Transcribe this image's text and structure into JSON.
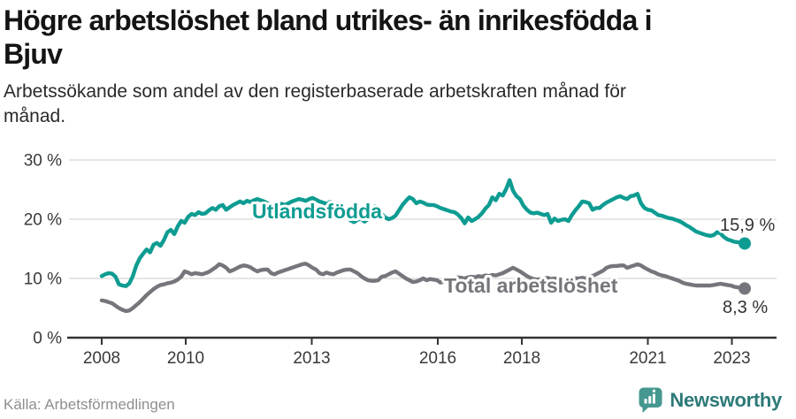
{
  "header": {
    "title_line1": "Högre arbetslöshet bland utrikes- än inrikesfödda i",
    "title_line2": "Bjuv",
    "subtitle_line1": "Arbetssökande som andel av den registerbaserade arbetskraften månad för",
    "subtitle_line2": "månad."
  },
  "footer": {
    "source": "Källa: Arbetsförmedlingen",
    "logo_text": "Newsworthy"
  },
  "colors": {
    "accent_teal": "#0e9c92",
    "series_gray": "#76757b",
    "grid": "#dddddd",
    "axis": "#333333",
    "logo_icon": "#45988f",
    "logo_text": "#2c7a78"
  },
  "chart_data": {
    "type": "line",
    "title": "Högre arbetslöshet bland utrikes- än inrikesfödda i Bjuv",
    "subtitle": "Arbetssökande som andel av den registerbaserade arbetskraften månad för månad.",
    "x_start": "2008-01",
    "x_end": "2023-07",
    "frequency": "monthly",
    "x_tick_labels": [
      "2008",
      "2010",
      "2013",
      "2016",
      "2018",
      "2021",
      "2023"
    ],
    "x_tick_years": [
      2008,
      2010,
      2013,
      2016,
      2018,
      2021,
      2023
    ],
    "y_ticks": [
      0,
      10,
      20,
      30
    ],
    "y_tick_labels": [
      "0 %",
      "10 %",
      "20 %",
      "30 %"
    ],
    "ylim": [
      0,
      30
    ],
    "grid": "horizontal",
    "legend_position": "inline-labels",
    "series": [
      {
        "name": "Utlandsfödda",
        "color": "#0e9c92",
        "end_label": "15,9 %",
        "end_value": 15.9,
        "values": [
          10.4,
          10.7,
          10.9,
          10.8,
          10.3,
          9.0,
          8.8,
          8.7,
          9.2,
          10.4,
          12.2,
          13.4,
          14.2,
          14.9,
          14.4,
          15.7,
          16.0,
          15.5,
          16.5,
          17.8,
          18.2,
          17.5,
          18.8,
          19.7,
          19.4,
          20.4,
          20.9,
          20.7,
          21.2,
          20.9,
          21.0,
          21.5,
          21.9,
          21.6,
          22.2,
          22.4,
          21.6,
          22.0,
          22.4,
          22.7,
          23.0,
          22.7,
          23.1,
          22.9,
          23.2,
          23.4,
          23.2,
          23.0,
          22.7,
          22.4,
          22.0,
          22.3,
          22.6,
          22.4,
          22.7,
          23.0,
          23.2,
          23.4,
          23.3,
          23.1,
          23.4,
          23.6,
          23.3,
          23.0,
          22.8,
          22.6,
          22.9,
          22.7,
          22.4,
          22.0,
          21.2,
          20.4,
          19.8,
          19.5,
          19.9,
          20.1,
          19.6,
          20.0,
          21.0,
          22.2,
          21.4,
          20.9,
          20.3,
          20.0,
          20.2,
          20.6,
          21.5,
          22.4,
          23.1,
          23.7,
          23.4,
          22.7,
          23.0,
          22.8,
          22.5,
          22.4,
          22.4,
          22.2,
          21.9,
          21.7,
          21.5,
          21.3,
          21.2,
          20.8,
          20.2,
          19.3,
          20.3,
          19.7,
          20.0,
          20.4,
          21.0,
          21.8,
          22.4,
          23.7,
          23.2,
          24.3,
          24.0,
          25.1,
          26.6,
          24.8,
          23.9,
          23.4,
          22.3,
          21.6,
          21.1,
          21.0,
          21.1,
          20.9,
          20.7,
          20.9,
          19.4,
          20.1,
          19.7,
          19.9,
          20.0,
          19.7,
          20.7,
          21.5,
          22.2,
          23.0,
          22.9,
          22.7,
          21.6,
          21.9,
          21.9,
          22.4,
          22.8,
          23.1,
          23.4,
          23.7,
          23.9,
          23.6,
          23.4,
          23.9,
          24.0,
          24.3,
          22.7,
          21.9,
          21.6,
          21.5,
          21.1,
          20.7,
          20.6,
          20.4,
          20.2,
          20.1,
          19.9,
          19.7,
          19.4,
          19.0,
          18.7,
          18.3,
          17.9,
          17.7,
          17.5,
          17.3,
          17.2,
          17.3,
          17.8,
          17.6,
          17.0,
          16.6,
          16.4,
          16.2,
          16.1,
          16.0,
          15.9
        ]
      },
      {
        "name": "Total arbetslöshet",
        "color": "#76757b",
        "end_label": "8,3 %",
        "end_value": 8.3,
        "values": [
          6.3,
          6.2,
          6.0,
          5.8,
          5.4,
          5.0,
          4.7,
          4.5,
          4.6,
          5.0,
          5.5,
          6.0,
          6.6,
          7.2,
          7.7,
          8.2,
          8.6,
          8.9,
          9.0,
          9.2,
          9.3,
          9.5,
          9.8,
          10.3,
          11.2,
          11.0,
          10.7,
          10.9,
          10.8,
          10.7,
          10.9,
          11.1,
          11.5,
          11.9,
          12.4,
          12.2,
          11.8,
          11.2,
          11.4,
          11.7,
          12.0,
          12.2,
          12.1,
          11.9,
          11.5,
          11.2,
          11.4,
          11.5,
          11.5,
          10.9,
          10.7,
          11.0,
          11.2,
          11.4,
          11.6,
          11.8,
          12.0,
          12.2,
          12.4,
          12.5,
          12.2,
          11.8,
          11.5,
          10.9,
          10.7,
          11.0,
          10.8,
          10.7,
          11.0,
          11.2,
          11.4,
          11.5,
          11.5,
          11.2,
          10.9,
          10.4,
          10.0,
          9.7,
          9.6,
          9.6,
          9.7,
          10.3,
          10.4,
          10.7,
          11.0,
          11.2,
          10.8,
          10.4,
          10.0,
          9.7,
          9.4,
          9.5,
          9.7,
          10.0,
          9.7,
          9.9,
          9.8,
          9.7,
          9.3,
          9.5,
          9.7,
          9.9,
          10.0,
          10.2,
          10.1,
          10.0,
          10.2,
          10.3,
          10.2,
          10.4,
          10.3,
          10.5,
          10.4,
          10.6,
          10.5,
          10.7,
          10.9,
          11.2,
          11.5,
          11.8,
          11.5,
          11.2,
          10.8,
          10.4,
          10.1,
          9.9,
          9.8,
          9.9,
          10.0,
          10.1,
          9.9,
          10.0,
          9.9,
          9.8,
          9.9,
          10.0,
          9.9,
          10.0,
          10.0,
          10.1,
          10.0,
          10.2,
          10.4,
          10.7,
          11.0,
          11.3,
          11.8,
          12.0,
          12.1,
          12.1,
          12.2,
          12.2,
          11.8,
          12.0,
          12.2,
          12.4,
          12.2,
          11.8,
          11.5,
          11.2,
          11.0,
          10.7,
          10.5,
          10.4,
          10.2,
          10.0,
          9.8,
          9.6,
          9.3,
          9.1,
          9.0,
          8.9,
          8.8,
          8.8,
          8.8,
          8.8,
          8.8,
          8.9,
          9.0,
          9.1,
          9.0,
          8.9,
          8.8,
          8.6,
          8.5,
          8.4,
          8.3
        ]
      }
    ]
  }
}
